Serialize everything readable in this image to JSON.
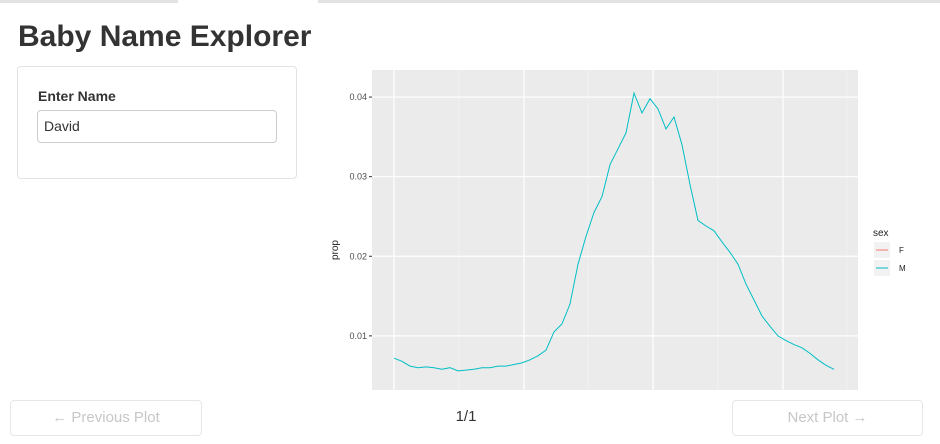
{
  "header": {
    "title": "Baby Name Explorer"
  },
  "sidebar": {
    "label": "Enter Name",
    "input_value": "David"
  },
  "navigation": {
    "previous": "Previous Plot",
    "page": "1/1",
    "next": "Next Plot"
  },
  "chart_data": {
    "type": "line",
    "y_label": "prop",
    "ylim": [
      0.0032,
      0.0434
    ],
    "yticks": [
      0.01,
      0.02,
      0.03,
      0.04
    ],
    "grid": true,
    "legend_title": "sex",
    "series": [
      {
        "name": "F",
        "color": "#F8766D",
        "values": [
          null,
          null,
          null,
          null,
          null,
          null,
          null,
          null,
          null,
          null,
          null,
          null,
          null,
          null,
          null,
          null,
          null,
          null,
          null,
          null,
          null,
          null,
          null,
          null,
          null,
          null,
          null,
          null,
          null,
          null,
          null,
          null,
          null,
          null,
          null,
          null,
          null,
          null,
          null,
          null,
          null,
          null,
          null,
          null,
          null,
          null,
          null,
          null,
          null,
          null,
          null,
          null,
          null,
          null,
          null,
          null
        ]
      },
      {
        "name": "M",
        "color": "#00BFC4",
        "values": [
          0.0072,
          0.0068,
          0.0062,
          0.006,
          0.0061,
          0.006,
          0.0058,
          0.006,
          0.0056,
          0.0057,
          0.0058,
          0.006,
          0.006,
          0.0062,
          0.0062,
          0.0064,
          0.0066,
          0.007,
          0.0075,
          0.0082,
          0.0105,
          0.0115,
          0.014,
          0.019,
          0.0225,
          0.0255,
          0.0275,
          0.0315,
          0.0335,
          0.0355,
          0.0405,
          0.038,
          0.0398,
          0.0385,
          0.036,
          0.0375,
          0.034,
          0.029,
          0.0245,
          0.0238,
          0.0232,
          0.0218,
          0.0205,
          0.019,
          0.0165,
          0.0145,
          0.0125,
          0.0112,
          0.01,
          0.0094,
          0.0089,
          0.0085,
          0.0078,
          0.007,
          0.0063,
          0.0058
        ]
      }
    ]
  }
}
